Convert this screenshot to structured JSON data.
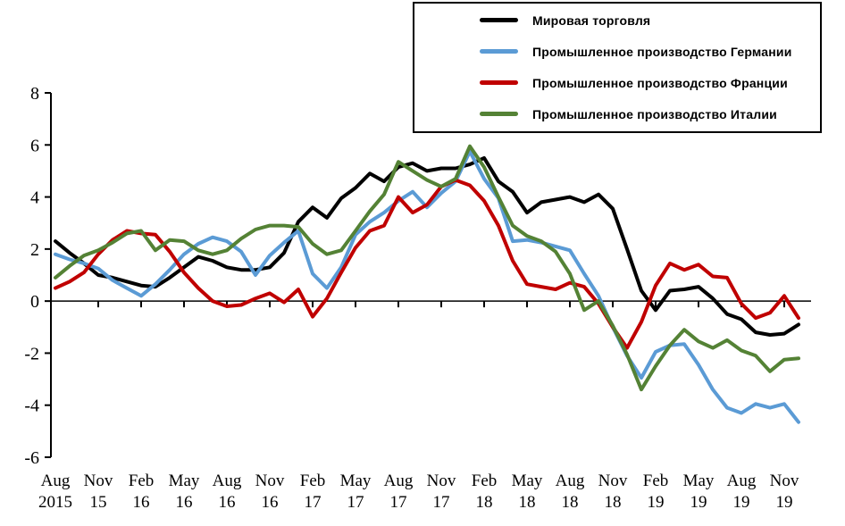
{
  "chart_data": {
    "type": "line",
    "title": "",
    "grid": false,
    "legend_position": "top-right",
    "ylim": [
      -6,
      8
    ],
    "y_ticks": [
      8,
      6,
      4,
      2,
      0,
      -2,
      -4,
      -6
    ],
    "x_tick_step": 3,
    "x_tick_labels": [
      {
        "month": "Aug",
        "year": "2015"
      },
      {
        "month": "Nov",
        "year": "15"
      },
      {
        "month": "Feb",
        "year": "16"
      },
      {
        "month": "May",
        "year": "16"
      },
      {
        "month": "Aug",
        "year": "16"
      },
      {
        "month": "Nov",
        "year": "16"
      },
      {
        "month": "Feb",
        "year": "17"
      },
      {
        "month": "May",
        "year": "17"
      },
      {
        "month": "Aug",
        "year": "17"
      },
      {
        "month": "Nov",
        "year": "17"
      },
      {
        "month": "Feb",
        "year": "18"
      },
      {
        "month": "May",
        "year": "18"
      },
      {
        "month": "Aug",
        "year": "18"
      },
      {
        "month": "Nov",
        "year": "18"
      },
      {
        "month": "Feb",
        "year": "19"
      },
      {
        "month": "May",
        "year": "19"
      },
      {
        "month": "Aug",
        "year": "19"
      },
      {
        "month": "Nov",
        "year": "19"
      }
    ],
    "x_start": "Aug 2015",
    "x_end": "Dec 2019",
    "x_frequency": "monthly",
    "series": [
      {
        "id": "world-trade",
        "name": "Мировая торговля",
        "color": "#000000",
        "width": 4,
        "values": [
          2.3,
          1.85,
          1.45,
          1.0,
          0.9,
          0.75,
          0.6,
          0.55,
          0.9,
          1.3,
          1.7,
          1.55,
          1.3,
          1.2,
          1.2,
          1.3,
          1.85,
          3.05,
          3.6,
          3.2,
          3.95,
          4.35,
          4.9,
          4.6,
          5.15,
          5.3,
          5.0,
          5.1,
          5.1,
          5.25,
          5.5,
          4.6,
          4.2,
          3.4,
          3.8,
          3.9,
          4.0,
          3.8,
          4.1,
          3.55,
          2.0,
          0.4,
          -0.35,
          0.4,
          0.45,
          0.55,
          0.1,
          -0.5,
          -0.7,
          -1.2,
          -1.3,
          -1.25,
          -0.9
        ]
      },
      {
        "id": "germany",
        "name": "Промышленное производство Германии",
        "color": "#5B9BD5",
        "width": 4,
        "values": [
          1.8,
          1.6,
          1.45,
          1.25,
          0.8,
          0.5,
          0.2,
          0.65,
          1.2,
          1.8,
          2.2,
          2.45,
          2.3,
          1.9,
          1.0,
          1.75,
          2.25,
          2.7,
          1.05,
          0.5,
          1.3,
          2.55,
          3.05,
          3.4,
          3.85,
          4.2,
          3.6,
          4.15,
          4.6,
          5.75,
          4.7,
          3.95,
          2.3,
          2.35,
          2.25,
          2.1,
          1.95,
          1.05,
          0.2,
          -1.0,
          -2.1,
          -2.95,
          -1.95,
          -1.7,
          -1.65,
          -2.45,
          -3.4,
          -4.1,
          -4.3,
          -3.95,
          -4.1,
          -3.95,
          -4.65
        ]
      },
      {
        "id": "france",
        "name": "Промышленное производство Франции",
        "color": "#C00000",
        "width": 4,
        "values": [
          0.5,
          0.75,
          1.1,
          1.8,
          2.35,
          2.7,
          2.6,
          2.55,
          1.9,
          1.1,
          0.5,
          0.0,
          -0.2,
          -0.15,
          0.1,
          0.3,
          -0.05,
          0.45,
          -0.6,
          0.1,
          1.1,
          2.05,
          2.7,
          2.9,
          4.0,
          3.4,
          3.7,
          4.4,
          4.65,
          4.45,
          3.85,
          2.9,
          1.55,
          0.65,
          0.55,
          0.45,
          0.7,
          0.55,
          -0.1,
          -1.0,
          -1.8,
          -0.8,
          0.6,
          1.45,
          1.2,
          1.4,
          0.95,
          0.9,
          -0.1,
          -0.65,
          -0.45,
          0.2,
          -0.65
        ]
      },
      {
        "id": "italy",
        "name": "Промышленное производство Италии",
        "color": "#548235",
        "width": 4,
        "values": [
          0.9,
          1.35,
          1.75,
          1.95,
          2.25,
          2.6,
          2.7,
          1.95,
          2.35,
          2.3,
          1.95,
          1.8,
          1.95,
          2.4,
          2.75,
          2.9,
          2.9,
          2.85,
          2.2,
          1.8,
          1.95,
          2.7,
          3.45,
          4.1,
          5.35,
          5.0,
          4.65,
          4.4,
          4.7,
          5.95,
          5.15,
          4.0,
          2.9,
          2.5,
          2.3,
          1.9,
          1.05,
          -0.35,
          0.0,
          -0.95,
          -2.05,
          -3.4,
          -2.5,
          -1.7,
          -1.1,
          -1.55,
          -1.8,
          -1.5,
          -1.9,
          -2.1,
          -2.7,
          -2.25,
          -2.2
        ]
      }
    ]
  }
}
